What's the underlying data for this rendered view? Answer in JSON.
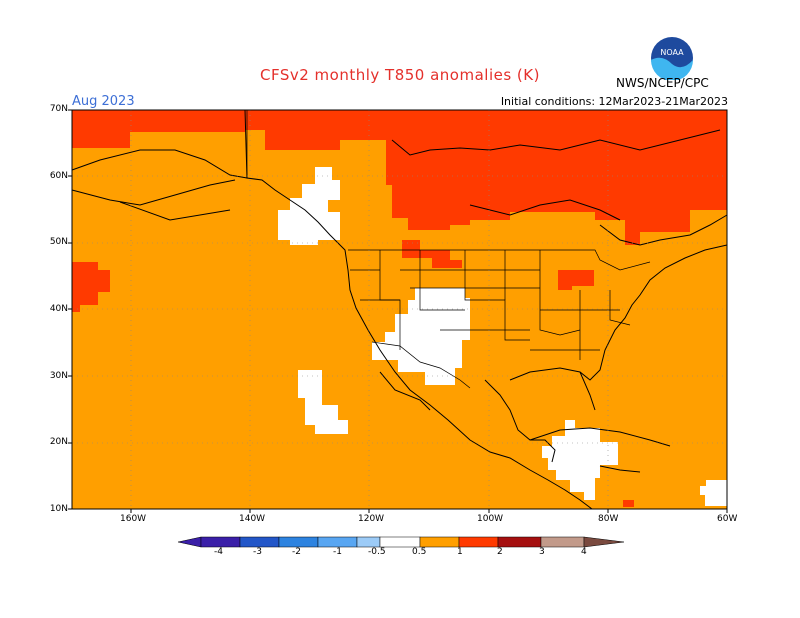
{
  "title": "CFSv2 monthly T850 anomalies (K)",
  "month": "Aug 2023",
  "initial_conditions": "Initial conditions: 12Mar2023-21Mar2023",
  "agency": "NWS/NCEP/CPC",
  "logo_text": "NOAA",
  "lat_labels": [
    "70N",
    "60N",
    "50N",
    "40N",
    "30N",
    "20N",
    "10N"
  ],
  "lon_labels": [
    "160W",
    "140W",
    "120W",
    "100W",
    "80W",
    "60W"
  ],
  "colorbar": {
    "labels": [
      "-4",
      "-3",
      "-2",
      "-1",
      "-0.5",
      "0.5",
      "1",
      "2",
      "3",
      "4"
    ],
    "colors": [
      "#3a1fa8",
      "#2256c8",
      "#2d83e0",
      "#58a6f2",
      "#9ccbf7",
      "#ffffff",
      "#ff9f00",
      "#ff3a00",
      "#a50f0f",
      "#c29a8a",
      "#7a4a3f"
    ]
  },
  "colors": {
    "anom_05_1": "#ff9f00",
    "anom_1_2": "#ff3a00",
    "neutral": "#ffffff",
    "title": "#e4302b",
    "month": "#3d6fd6"
  }
}
